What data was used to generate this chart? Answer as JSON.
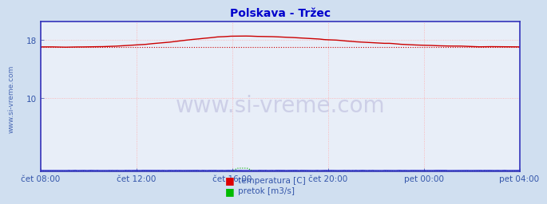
{
  "title": "Polskava - Tržec",
  "title_color": "#0000cc",
  "title_fontsize": 10,
  "bg_color": "#d0dff0",
  "plot_bg_color": "#e8eef8",
  "border_color": "#3333bb",
  "grid_color": "#ffaaaa",
  "watermark": "www.si-vreme.com",
  "watermark_color": "#bbbbdd",
  "watermark_fontsize": 20,
  "ylim": [
    0,
    20.5
  ],
  "yticks": [
    10,
    18
  ],
  "ylabel_color": "#333366",
  "xlabel_color": "#3355aa",
  "xtick_labels": [
    "čet 08:00",
    "čet 12:00",
    "čet 16:00",
    "čet 20:00",
    "pet 00:00",
    "pet 04:00"
  ],
  "n_points": 288,
  "temp_color": "#cc0000",
  "temp_avg_color": "#cc0000",
  "pretok_color": "#00aa00",
  "visina_color": "#0000cc",
  "legend_labels": [
    "temperatura [C]",
    "pretok [m3/s]"
  ],
  "legend_colors": [
    "#dd0000",
    "#00bb00"
  ],
  "sidebar_color": "#3355aa",
  "sidebar_text": "www.si-vreme.com",
  "sidebar_fontsize": 6.5
}
